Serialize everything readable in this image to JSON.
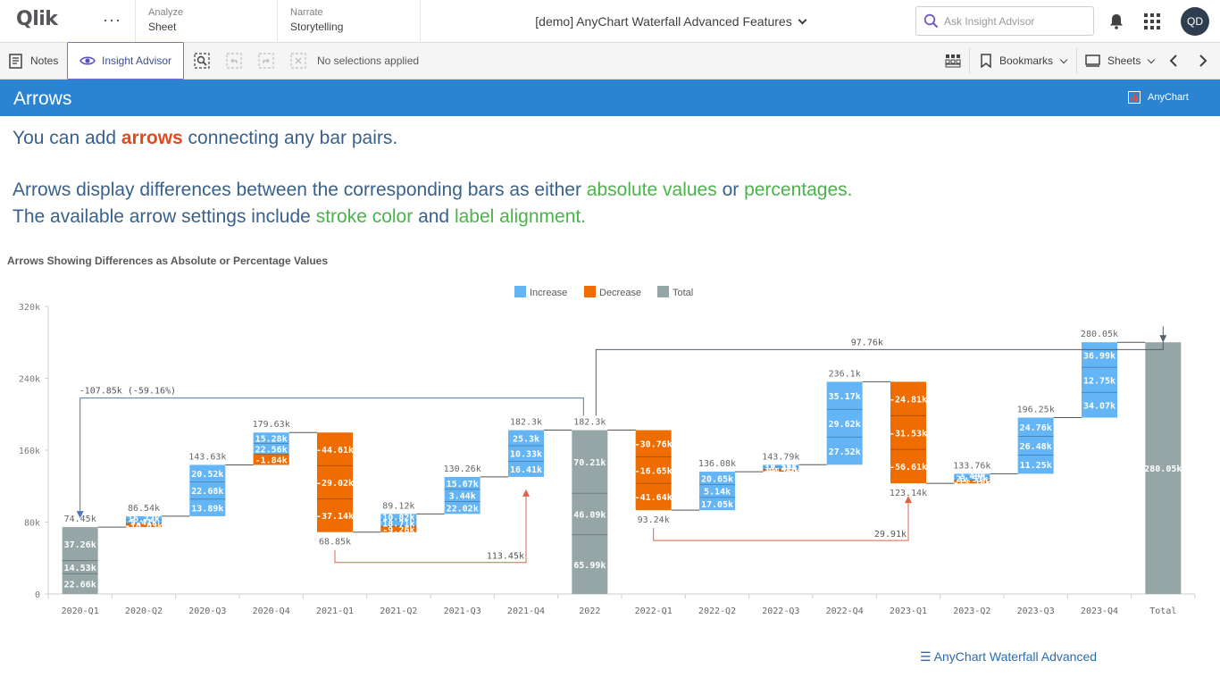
{
  "topbar": {
    "logo": "Qlik",
    "more": "···",
    "analyze": {
      "top": "Analyze",
      "bottom": "Sheet"
    },
    "narrate": {
      "top": "Narrate",
      "bottom": "Storytelling"
    },
    "app_title": "[demo] AnyChart Waterfall Advanced Features",
    "search_placeholder": "Ask Insight Advisor",
    "avatar_initials": "QD"
  },
  "toolbar": {
    "notes": "Notes",
    "insight_advisor": "Insight Advisor",
    "no_selections": "No selections applied",
    "bookmarks": "Bookmarks",
    "sheets": "Sheets"
  },
  "sheet": {
    "title": "Arrows",
    "badge": "AnyChart"
  },
  "text": {
    "l1_pre": "You can add ",
    "l1_hl": "arrows",
    "l1_post": " connecting any bar pairs.",
    "l2_pre": "Arrows display differences between the corresponding bars as either ",
    "l2_hl1": "absolute values",
    "l2_mid": " or ",
    "l2_hl2": "percentages.",
    "l3_pre": "The available arrow settings include ",
    "l3_hl1": "stroke color",
    "l3_mid": " and ",
    "l3_hl2": "label alignment."
  },
  "colors": {
    "increase": "#64b5f6",
    "decrease": "#ef6c00",
    "total": "#96a6a6",
    "header": "#2b83d1",
    "arrow_dark": "#545f69",
    "arrow_blue": "#4f78b0",
    "arrow_red": "#e06044"
  },
  "chart_data": {
    "type": "waterfall",
    "title": "Arrows Showing Differences as Absolute or Percentage Values",
    "legend": [
      "Increase",
      "Decrease",
      "Total"
    ],
    "legend_position": "top-center",
    "ylim": [
      0,
      320000
    ],
    "yticks": [
      "0",
      "80k",
      "160k",
      "240k",
      "320k"
    ],
    "categories": [
      "2020-Q1",
      "2020-Q2",
      "2020-Q3",
      "2020-Q4",
      "2021-Q1",
      "2021-Q2",
      "2021-Q3",
      "2021-Q4",
      "2022",
      "2022-Q1",
      "2022-Q2",
      "2022-Q3",
      "2022-Q4",
      "2023-Q1",
      "2023-Q2",
      "2023-Q3",
      "2023-Q4",
      "Total"
    ],
    "bars": [
      {
        "cat": "2020-Q1",
        "kind": "total",
        "start": 0,
        "end": 74450,
        "top_label": "74.45k",
        "segments": [
          {
            "value": 22660,
            "label": "22.66k"
          },
          {
            "value": 14530,
            "label": "14.53k"
          },
          {
            "value": 37260,
            "label": "37.26k"
          }
        ]
      },
      {
        "cat": "2020-Q2",
        "kind": "increase",
        "start": 74450,
        "end": 86540,
        "top_label": "86.54k",
        "segments": [
          {
            "value": -10030,
            "label": "-10.03k"
          },
          {
            "value": 5410,
            "label": "5.41k"
          },
          {
            "value": 16720,
            "label": "16.72k"
          }
        ]
      },
      {
        "cat": "2020-Q3",
        "kind": "increase",
        "start": 86540,
        "end": 143630,
        "top_label": "143.63k",
        "segments": [
          {
            "value": 13890,
            "label": "13.89k"
          },
          {
            "value": 22680,
            "label": "22.68k"
          },
          {
            "value": 20520,
            "label": "20.52k"
          }
        ]
      },
      {
        "cat": "2020-Q4",
        "kind": "increase",
        "start": 143630,
        "end": 179630,
        "top_label": "179.63k",
        "segments": [
          {
            "value": -1840,
            "label": "-1.84k"
          },
          {
            "value": 22560,
            "label": "22.56k"
          },
          {
            "value": 15280,
            "label": "15.28k"
          }
        ]
      },
      {
        "cat": "2021-Q1",
        "kind": "decrease",
        "start": 179630,
        "end": 68850,
        "top_label": "68.85k",
        "segments": [
          {
            "value": -37140,
            "label": "-37.14k"
          },
          {
            "value": -29020,
            "label": "-29.02k"
          },
          {
            "value": -44610,
            "label": "-44.61k"
          }
        ]
      },
      {
        "cat": "2021-Q2",
        "kind": "increase",
        "start": 68850,
        "end": 89120,
        "top_label": "89.12k",
        "segments": [
          {
            "value": -9260,
            "label": "-9.26k"
          },
          {
            "value": 18710,
            "label": "18.71k"
          },
          {
            "value": 10820,
            "label": "10.82k"
          }
        ]
      },
      {
        "cat": "2021-Q3",
        "kind": "increase",
        "start": 89120,
        "end": 130260,
        "top_label": "130.26k",
        "segments": [
          {
            "value": 22020,
            "label": "22.02k"
          },
          {
            "value": 3440,
            "label": "3.44k"
          },
          {
            "value": 15670,
            "label": "15.67k"
          }
        ]
      },
      {
        "cat": "2021-Q4",
        "kind": "increase",
        "start": 130260,
        "end": 182300,
        "top_label": "182.3k",
        "segments": [
          {
            "value": 16410,
            "label": "16.41k"
          },
          {
            "value": 10330,
            "label": "10.33k"
          },
          {
            "value": 25300,
            "label": "25.3k"
          }
        ]
      },
      {
        "cat": "2022",
        "kind": "total",
        "start": 0,
        "end": 182300,
        "top_label": "182.3k",
        "segments": [
          {
            "value": 65990,
            "label": "65.99k"
          },
          {
            "value": 46090,
            "label": "46.09k"
          },
          {
            "value": 70210,
            "label": "70.21k"
          }
        ]
      },
      {
        "cat": "2022-Q1",
        "kind": "decrease",
        "start": 182300,
        "end": 93240,
        "top_label": "93.24k",
        "segments": [
          {
            "value": -41640,
            "label": "-41.64k"
          },
          {
            "value": -16650,
            "label": "-16.65k"
          },
          {
            "value": -30760,
            "label": "-30.76k"
          }
        ]
      },
      {
        "cat": "2022-Q2",
        "kind": "increase",
        "start": 93240,
        "end": 136080,
        "top_label": "136.08k",
        "segments": [
          {
            "value": 17050,
            "label": "17.05k"
          },
          {
            "value": 5140,
            "label": "5.14k"
          },
          {
            "value": 20650,
            "label": "20.65k"
          }
        ]
      },
      {
        "cat": "2022-Q3",
        "kind": "increase",
        "start": 136080,
        "end": 143790,
        "top_label": "143.79k",
        "segments": [
          {
            "value": -14270,
            "label": "-14.27k"
          },
          {
            "value": 11410,
            "label": "11.41k"
          },
          {
            "value": 10560,
            "label": "10.56k"
          }
        ]
      },
      {
        "cat": "2022-Q4",
        "kind": "increase",
        "start": 143790,
        "end": 236100,
        "top_label": "236.1k",
        "segments": [
          {
            "value": 27520,
            "label": "27.52k"
          },
          {
            "value": 29620,
            "label": "29.62k"
          },
          {
            "value": 35170,
            "label": "35.17k"
          }
        ]
      },
      {
        "cat": "2023-Q1",
        "kind": "decrease",
        "start": 236100,
        "end": 123140,
        "top_label": "123.14k",
        "segments": [
          {
            "value": -56610,
            "label": "-56.61k"
          },
          {
            "value": -31530,
            "label": "-31.53k"
          },
          {
            "value": -24810,
            "label": "-24.81k"
          }
        ]
      },
      {
        "cat": "2023-Q2",
        "kind": "increase",
        "start": 123140,
        "end": 133760,
        "top_label": "133.76k",
        "segments": [
          {
            "value": -13180,
            "label": "-13.18k"
          },
          {
            "value": 21310,
            "label": "21.31k"
          },
          {
            "value": 2490,
            "label": "2.49k"
          }
        ]
      },
      {
        "cat": "2023-Q3",
        "kind": "increase",
        "start": 133760,
        "end": 196250,
        "top_label": "196.25k",
        "segments": [
          {
            "value": 11250,
            "label": "11.25k"
          },
          {
            "value": 26480,
            "label": "26.48k"
          },
          {
            "value": 24760,
            "label": "24.76k"
          }
        ]
      },
      {
        "cat": "2023-Q4",
        "kind": "increase",
        "start": 196250,
        "end": 280050,
        "top_label": "280.05k",
        "segments": [
          {
            "value": 34070,
            "label": "34.07k"
          },
          {
            "value": 12750,
            "label": "12.75k"
          },
          {
            "value": 36990,
            "label": "36.99k"
          }
        ]
      },
      {
        "cat": "Total",
        "kind": "total",
        "start": 0,
        "end": 280050,
        "top_label": "",
        "segments": [
          {
            "value": 280050,
            "label": "280.05k"
          }
        ]
      }
    ],
    "arrows": [
      {
        "from": "2022",
        "to": "2020-Q1",
        "label": "-107.85k (-59.16%)",
        "side": "top",
        "color": "arrow_blue"
      },
      {
        "from": "2022",
        "to": "Total",
        "label": "97.76k",
        "side": "top",
        "color": "arrow_dark"
      },
      {
        "from": "2021-Q1",
        "to": "2021-Q4",
        "label": "113.45k",
        "side": "bottom",
        "color": "arrow_red"
      },
      {
        "from": "2022-Q1",
        "to": "2023-Q1",
        "label": "29.91k",
        "side": "bottom",
        "color": "arrow_red"
      }
    ]
  },
  "footer": {
    "link": "☰ AnyChart Waterfall Advanced"
  }
}
